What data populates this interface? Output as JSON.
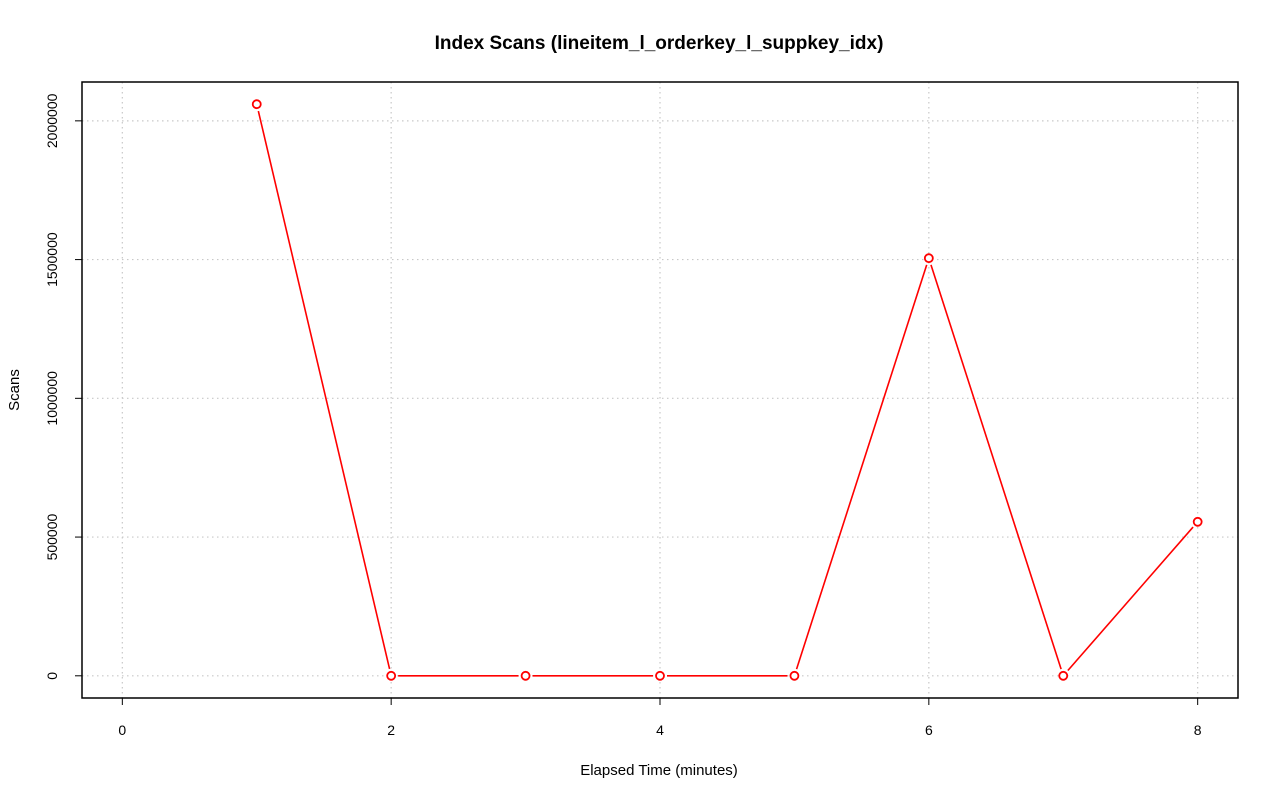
{
  "chart_data": {
    "type": "line",
    "title": "Index Scans (lineitem_l_orderkey_l_suppkey_idx)",
    "xlabel": "Elapsed Time (minutes)",
    "ylabel": "Scans",
    "xlim": [
      -0.3,
      8.3
    ],
    "ylim": [
      -80000,
      2140000
    ],
    "x_ticks": [
      0,
      2,
      4,
      6,
      8
    ],
    "y_ticks": [
      0,
      500000,
      1000000,
      1500000,
      2000000
    ],
    "grid": true,
    "series": [
      {
        "color": "#ff0000",
        "x": [
          1,
          2,
          3,
          4,
          5,
          6,
          7,
          8
        ],
        "y": [
          2060000,
          0,
          0,
          0,
          0,
          1505000,
          0,
          555000
        ]
      }
    ]
  }
}
